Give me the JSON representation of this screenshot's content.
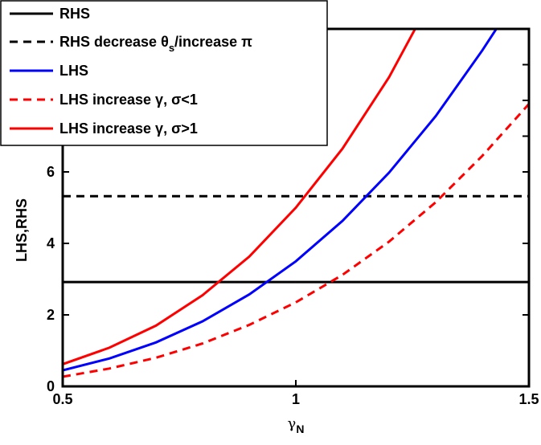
{
  "chart_data": {
    "type": "line",
    "title": "",
    "xlabel": "γ",
    "xlabel_sub": "N",
    "ylabel": "LHS,RHS",
    "xlim": [
      0.5,
      1.5
    ],
    "ylim": [
      0,
      10
    ],
    "x_ticks": [
      "0.5",
      "1",
      "1.5"
    ],
    "y_ticks": [
      "0",
      "2",
      "4",
      "6"
    ],
    "grid": false,
    "legend_position": "top-left",
    "legend": [
      {
        "parts": [
          {
            "t": "RHS"
          }
        ]
      },
      {
        "parts": [
          {
            "t": "RHS decrease θ"
          },
          {
            "t": "s",
            "sub": true
          },
          {
            "t": "/increase π"
          }
        ]
      },
      {
        "parts": [
          {
            "t": "LHS"
          }
        ]
      },
      {
        "parts": [
          {
            "t": "LHS increase γ, σ<1"
          }
        ]
      },
      {
        "parts": [
          {
            "t": "LHS increase γ, σ>1"
          }
        ]
      }
    ],
    "series": [
      {
        "color": "#000000",
        "dash": false,
        "x": [
          0.5,
          1.5
        ],
        "y": [
          2.92,
          2.92
        ]
      },
      {
        "color": "#000000",
        "dash": true,
        "x": [
          0.5,
          1.5
        ],
        "y": [
          5.32,
          5.32
        ]
      },
      {
        "color": "#0000ff",
        "dash": false,
        "x": [
          0.5,
          0.6,
          0.7,
          0.8,
          0.9,
          1.0,
          1.1,
          1.2,
          1.3,
          1.4,
          1.44
        ],
        "y": [
          0.45,
          0.78,
          1.23,
          1.82,
          2.57,
          3.5,
          4.63,
          5.98,
          7.56,
          9.4,
          10.2
        ]
      },
      {
        "color": "#ff0000",
        "dash": true,
        "x": [
          0.5,
          0.6,
          0.7,
          0.8,
          0.9,
          1.0,
          1.1,
          1.2,
          1.3,
          1.4,
          1.5
        ],
        "y": [
          0.27,
          0.5,
          0.8,
          1.2,
          1.72,
          2.35,
          3.12,
          4.05,
          5.15,
          6.45,
          7.9
        ]
      },
      {
        "color": "#ff0000",
        "dash": false,
        "x": [
          0.5,
          0.6,
          0.7,
          0.8,
          0.9,
          1.0,
          1.1,
          1.2,
          1.26
        ],
        "y": [
          0.62,
          1.08,
          1.7,
          2.55,
          3.63,
          5.0,
          6.65,
          8.65,
          10.1
        ]
      }
    ]
  }
}
